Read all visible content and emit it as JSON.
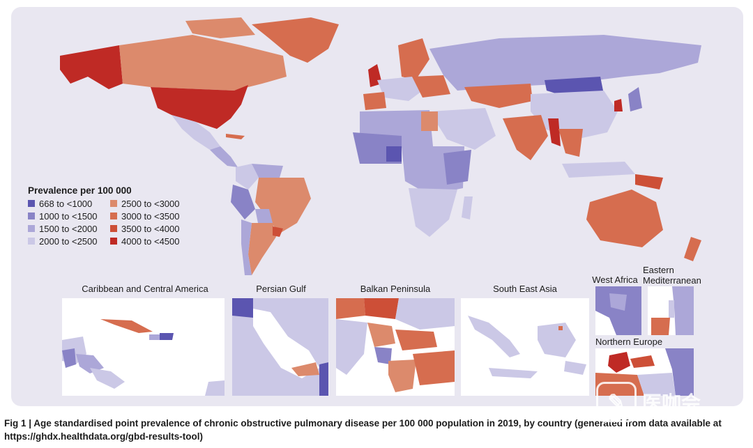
{
  "legend": {
    "title": "Prevalence per 100 000",
    "items": [
      {
        "label": "668 to <1000",
        "color": "#5b55b0"
      },
      {
        "label": "2500 to <3000",
        "color": "#dc8a6c"
      },
      {
        "label": "1000 to <1500",
        "color": "#8983c6"
      },
      {
        "label": "3000 to <3500",
        "color": "#d66d4f"
      },
      {
        "label": "1500 to <2000",
        "color": "#aca7d8"
      },
      {
        "label": "3500 to <4000",
        "color": "#cd4f37"
      },
      {
        "label": "2000 to <2500",
        "color": "#cbc8e6"
      },
      {
        "label": "4000 to <4500",
        "color": "#bf2a25"
      }
    ]
  },
  "insets": {
    "caribbean": "Caribbean and Central America",
    "persian_gulf": "Persian Gulf",
    "balkan": "Balkan Peninsula",
    "south_east_asia": "South East Asia",
    "west_africa": "West Africa",
    "eastern_mediterranean": "Eastern Mediterranean",
    "northern_europe": "Northern Europe"
  },
  "caption": "Fig 1 | Age standardised point prevalence of chronic obstructive pulmonary disease per 100 000 population in 2019, by country (generated from data available at https://ghdx.healthdata.org/gbd-results-tool)",
  "watermark": "医咖会",
  "colors": {
    "background": "#e9e7f1",
    "ocean_panel": "#e9e7f1",
    "inset_background": "#ffffff"
  }
}
